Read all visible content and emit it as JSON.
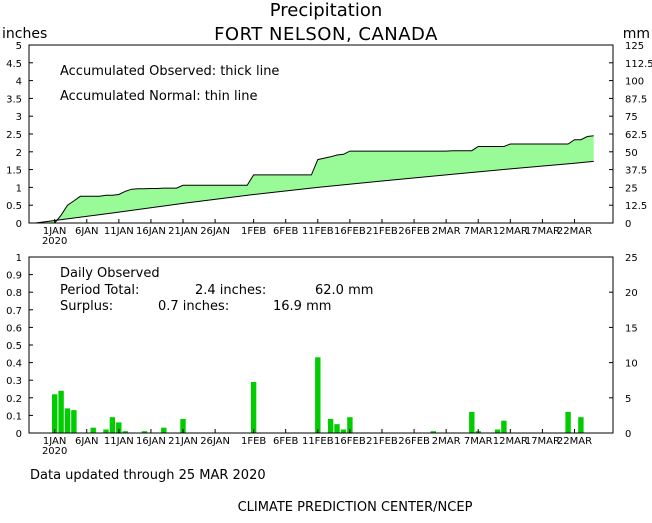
{
  "header": {
    "title": "Precipitation",
    "station": "FORT NELSON, CANADA",
    "left_unit": "inches",
    "right_unit": "mm"
  },
  "top_panel": {
    "left_ticks": [
      "0",
      "0.5",
      "1",
      "1.5",
      "2",
      "2.5",
      "3",
      "3.5",
      "4",
      "4.5",
      "5"
    ],
    "right_ticks": [
      "0",
      "12.5",
      "25",
      "37.5",
      "50",
      "62.5",
      "75",
      "87.5",
      "100",
      "112.5",
      "125"
    ],
    "annotation_observed": "Accumulated Observed: thick line",
    "annotation_normal": "Accumulated Normal: thin line"
  },
  "bottom_panel": {
    "left_ticks": [
      "0",
      "0.1",
      "0.2",
      "0.3",
      "0.4",
      "0.5",
      "0.6",
      "0.7",
      "0.8",
      "0.9",
      "1"
    ],
    "right_ticks": [
      "0",
      "5",
      "10",
      "15",
      "20",
      "25"
    ],
    "legend_title": "Daily Observed",
    "period_label": "Period Total:",
    "period_inches": "2.4 inches:",
    "period_mm": "62.0 mm",
    "surplus_label": "Surplus:",
    "surplus_inches": "0.7 inches:",
    "surplus_mm": "16.9 mm"
  },
  "x_axis": {
    "labels": [
      "1JAN",
      "6JAN",
      "11JAN",
      "16JAN",
      "21JAN",
      "26JAN",
      "1FEB",
      "6FEB",
      "11FEB",
      "16FEB",
      "21FEB",
      "26FEB",
      "2MAR",
      "7MAR",
      "12MAR",
      "17MAR",
      "22MAR"
    ],
    "label_days": [
      1,
      6,
      11,
      16,
      21,
      26,
      32,
      37,
      42,
      47,
      52,
      57,
      62,
      67,
      72,
      77,
      82
    ],
    "year_label": "2020"
  },
  "footer": {
    "updated": "Data updated through 25 MAR 2020",
    "source": "CLIMATE PREDICTION CENTER/NCEP"
  },
  "colors": {
    "observed_fill": "#98fb98",
    "bar_fill": "#00cc00",
    "line": "#000000"
  },
  "chart_data": [
    {
      "type": "area",
      "title": "Precipitation",
      "subtitle": "FORT NELSON, CANADA",
      "ylabel": "inches",
      "ylabel_right": "mm",
      "ylim": [
        0,
        5
      ],
      "ylim_right": [
        0,
        125
      ],
      "x_start": "1 JAN 2020",
      "series": [
        {
          "name": "Accumulated Observed",
          "points": [
            [
              "29 DEC 2019",
              0.0
            ],
            [
              "1 JAN 2020",
              0.0
            ],
            [
              "2 JAN 2020",
              0.22
            ],
            [
              "3 JAN 2020",
              0.5
            ],
            [
              "4 JAN 2020",
              0.62
            ],
            [
              "5 JAN 2020",
              0.75
            ],
            [
              "8 JAN 2020",
              0.75
            ],
            [
              "9 JAN 2020",
              0.78
            ],
            [
              "10 JAN 2020",
              0.78
            ],
            [
              "11 JAN 2020",
              0.8
            ],
            [
              "12 JAN 2020",
              0.89
            ],
            [
              "13 JAN 2020",
              0.95
            ],
            [
              "14 JAN 2020",
              0.96
            ],
            [
              "15 JAN 2020",
              0.96
            ],
            [
              "16 JAN 2020",
              0.97
            ],
            [
              "17 JAN 2020",
              0.97
            ],
            [
              "18 JAN 2020",
              0.98
            ],
            [
              "19 JAN 2020",
              0.98
            ],
            [
              "20 JAN 2020",
              0.98
            ],
            [
              "21 JAN 2020",
              1.06
            ],
            [
              "31 JAN 2020",
              1.06
            ],
            [
              "1 FEB 2020",
              1.35
            ],
            [
              "10 FEB 2020",
              1.35
            ],
            [
              "11 FEB 2020",
              1.78
            ],
            [
              "13 FEB 2020",
              1.86
            ],
            [
              "14 FEB 2020",
              1.91
            ],
            [
              "15 FEB 2020",
              1.93
            ],
            [
              "16 FEB 2020",
              2.02
            ],
            [
              "2 MAR 2020",
              2.02
            ],
            [
              "3 MAR 2020",
              2.03
            ],
            [
              "6 MAR 2020",
              2.03
            ],
            [
              "7 MAR 2020",
              2.15
            ],
            [
              "11 MAR 2020",
              2.15
            ],
            [
              "12 MAR 2020",
              2.22
            ],
            [
              "21 MAR 2020",
              2.22
            ],
            [
              "22 MAR 2020",
              2.34
            ],
            [
              "23 MAR 2020",
              2.34
            ],
            [
              "24 MAR 2020",
              2.43
            ],
            [
              "25 MAR 2020",
              2.45
            ]
          ]
        },
        {
          "name": "Accumulated Normal",
          "points": [
            [
              "29 DEC 2019",
              0.0
            ],
            [
              "1 JAN 2020",
              0.07
            ],
            [
              "10 JAN 2020",
              0.28
            ],
            [
              "21 JAN 2020",
              0.55
            ],
            [
              "1 FEB 2020",
              0.8
            ],
            [
              "11 FEB 2020",
              1.0
            ],
            [
              "21 FEB 2020",
              1.18
            ],
            [
              "2 MAR 2020",
              1.35
            ],
            [
              "12 MAR 2020",
              1.52
            ],
            [
              "22 MAR 2020",
              1.68
            ],
            [
              "25 MAR 2020",
              1.73
            ]
          ]
        }
      ]
    },
    {
      "type": "bar",
      "title": "Daily Observed",
      "ylabel": "inches",
      "ylabel_right": "mm",
      "ylim": [
        0,
        1
      ],
      "ylim_right": [
        0,
        25
      ],
      "series": [
        {
          "name": "Daily Observed",
          "points": [
            [
              "1 JAN 2020",
              0.22
            ],
            [
              "2 JAN 2020",
              0.24
            ],
            [
              "3 JAN 2020",
              0.14
            ],
            [
              "4 JAN 2020",
              0.13
            ],
            [
              "7 JAN 2020",
              0.03
            ],
            [
              "9 JAN 2020",
              0.02
            ],
            [
              "10 JAN 2020",
              0.09
            ],
            [
              "11 JAN 2020",
              0.06
            ],
            [
              "12 JAN 2020",
              0.01
            ],
            [
              "15 JAN 2020",
              0.01
            ],
            [
              "18 JAN 2020",
              0.03
            ],
            [
              "21 JAN 2020",
              0.08
            ],
            [
              "1 FEB 2020",
              0.29
            ],
            [
              "11 FEB 2020",
              0.43
            ],
            [
              "13 FEB 2020",
              0.08
            ],
            [
              "14 FEB 2020",
              0.05
            ],
            [
              "15 FEB 2020",
              0.02
            ],
            [
              "16 FEB 2020",
              0.09
            ],
            [
              "29 FEB 2020",
              0.01
            ],
            [
              "6 MAR 2020",
              0.12
            ],
            [
              "7 MAR 2020",
              0.01
            ],
            [
              "10 MAR 2020",
              0.02
            ],
            [
              "11 MAR 2020",
              0.07
            ],
            [
              "21 MAR 2020",
              0.12
            ],
            [
              "23 MAR 2020",
              0.09
            ]
          ]
        }
      ]
    }
  ]
}
